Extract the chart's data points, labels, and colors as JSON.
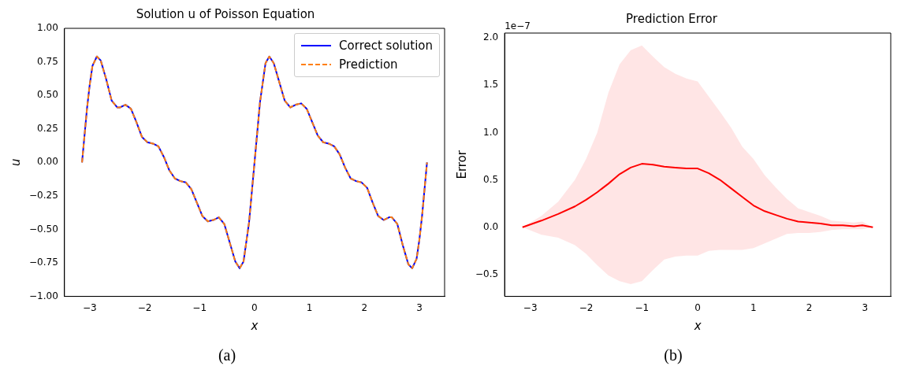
{
  "chart_data": [
    {
      "type": "line",
      "title": "Solution u of Poisson Equation",
      "xlabel": "x",
      "ylabel": "u",
      "x": [
        -3.14,
        -3.05,
        -3.0,
        -2.95,
        -2.87,
        -2.8,
        -2.7,
        -2.6,
        -2.5,
        -2.45,
        -2.35,
        -2.25,
        -2.15,
        -2.05,
        -1.95,
        -1.85,
        -1.75,
        -1.65,
        -1.55,
        -1.45,
        -1.35,
        -1.25,
        -1.15,
        -1.05,
        -0.95,
        -0.85,
        -0.75,
        -0.65,
        -0.55,
        -0.45,
        -0.35,
        -0.27,
        -0.2,
        -0.1,
        0,
        0.1,
        0.2,
        0.27,
        0.35,
        0.45,
        0.55,
        0.65,
        0.75,
        0.85,
        0.95,
        1.05,
        1.15,
        1.25,
        1.35,
        1.45,
        1.55,
        1.65,
        1.75,
        1.85,
        1.95,
        2.05,
        2.15,
        2.25,
        2.35,
        2.45,
        2.5,
        2.6,
        2.7,
        2.8,
        2.87,
        2.95,
        3.0,
        3.05,
        3.14
      ],
      "series": [
        {
          "name": "Correct solution",
          "color": "#0000ff",
          "line_style": "solid",
          "values": [
            0,
            0.4,
            0.58,
            0.72,
            0.79,
            0.76,
            0.62,
            0.46,
            0.41,
            0.41,
            0.43,
            0.4,
            0.3,
            0.19,
            0.15,
            0.14,
            0.12,
            0.04,
            -0.06,
            -0.12,
            -0.14,
            -0.15,
            -0.2,
            -0.3,
            -0.4,
            -0.44,
            -0.43,
            -0.41,
            -0.46,
            -0.6,
            -0.74,
            -0.79,
            -0.74,
            -0.45,
            0,
            0.45,
            0.74,
            0.79,
            0.74,
            0.6,
            0.46,
            0.41,
            0.43,
            0.44,
            0.4,
            0.3,
            0.2,
            0.15,
            0.14,
            0.12,
            0.06,
            -0.04,
            -0.12,
            -0.14,
            -0.15,
            -0.19,
            -0.3,
            -0.4,
            -0.43,
            -0.41,
            -0.41,
            -0.46,
            -0.62,
            -0.76,
            -0.79,
            -0.72,
            -0.58,
            -0.4,
            0
          ]
        },
        {
          "name": "Prediction",
          "color": "#ff7f0e",
          "line_style": "dashed",
          "values": [
            0,
            0.4,
            0.58,
            0.72,
            0.79,
            0.76,
            0.62,
            0.46,
            0.41,
            0.41,
            0.43,
            0.4,
            0.3,
            0.19,
            0.15,
            0.14,
            0.12,
            0.04,
            -0.06,
            -0.12,
            -0.14,
            -0.15,
            -0.2,
            -0.3,
            -0.4,
            -0.44,
            -0.43,
            -0.41,
            -0.46,
            -0.6,
            -0.74,
            -0.79,
            -0.74,
            -0.45,
            0,
            0.45,
            0.74,
            0.79,
            0.74,
            0.6,
            0.46,
            0.41,
            0.43,
            0.44,
            0.4,
            0.3,
            0.2,
            0.15,
            0.14,
            0.12,
            0.06,
            -0.04,
            -0.12,
            -0.14,
            -0.15,
            -0.19,
            -0.3,
            -0.4,
            -0.43,
            -0.41,
            -0.41,
            -0.46,
            -0.62,
            -0.76,
            -0.79,
            -0.72,
            -0.58,
            -0.4,
            0
          ]
        }
      ],
      "xlim": [
        -3.46,
        3.46
      ],
      "xticks": [
        {
          "value": -3,
          "label": "−3"
        },
        {
          "value": -2,
          "label": "−2"
        },
        {
          "value": -1,
          "label": "−1"
        },
        0,
        1,
        2,
        3
      ],
      "ylim": [
        -1,
        1
      ],
      "yticks": [
        {
          "value": -1,
          "label": "−1.00"
        },
        {
          "value": -0.75,
          "label": "−0.75"
        },
        {
          "value": -0.5,
          "label": "−0.50"
        },
        {
          "value": -0.25,
          "label": "−0.25"
        },
        {
          "value": 0,
          "label": "0.00"
        },
        {
          "value": 0.25,
          "label": "0.25"
        },
        {
          "value": 0.5,
          "label": "0.50"
        },
        {
          "value": 0.75,
          "label": "0.75"
        },
        {
          "value": 1,
          "label": "1.00"
        }
      ],
      "grid": false,
      "legend": "top right",
      "annotations": [
        "(a)"
      ]
    },
    {
      "type": "line",
      "title": "Prediction Error",
      "xlabel": "x",
      "ylabel": "Error",
      "x": [
        -3.14,
        -2.8,
        -2.5,
        -2.2,
        -2.0,
        -1.8,
        -1.6,
        -1.4,
        -1.2,
        -1.0,
        -0.8,
        -0.6,
        -0.4,
        -0.2,
        0,
        0.2,
        0.4,
        0.6,
        0.8,
        1.0,
        1.2,
        1.4,
        1.6,
        1.8,
        2.0,
        2.2,
        2.4,
        2.6,
        2.8,
        2.95,
        3.14
      ],
      "series": [
        {
          "color": "#ff0000",
          "line_style": "solid",
          "values": [
            0,
            0.07,
            0.14,
            0.22,
            0.29,
            0.37,
            0.46,
            0.56,
            0.63,
            0.67,
            0.66,
            0.64,
            0.63,
            0.62,
            0.62,
            0.57,
            0.5,
            0.41,
            0.32,
            0.23,
            0.17,
            0.13,
            0.09,
            0.06,
            0.05,
            0.04,
            0.02,
            0.02,
            0.01,
            0.02,
            0
          ],
          "upper": [
            0,
            0.12,
            0.27,
            0.5,
            0.72,
            1.0,
            1.42,
            1.72,
            1.87,
            1.92,
            1.8,
            1.69,
            1.62,
            1.57,
            1.54,
            1.38,
            1.22,
            1.05,
            0.85,
            0.72,
            0.55,
            0.42,
            0.3,
            0.2,
            0.16,
            0.12,
            0.07,
            0.06,
            0.05,
            0.06,
            0
          ],
          "lower": [
            0,
            -0.08,
            -0.11,
            -0.19,
            -0.28,
            -0.4,
            -0.51,
            -0.57,
            -0.6,
            -0.57,
            -0.45,
            -0.34,
            -0.31,
            -0.3,
            -0.3,
            -0.25,
            -0.24,
            -0.24,
            -0.24,
            -0.22,
            -0.17,
            -0.12,
            -0.07,
            -0.06,
            -0.06,
            -0.05,
            -0.03,
            -0.02,
            -0.02,
            -0.02,
            0
          ]
        }
      ],
      "xlim": [
        -3.46,
        3.46
      ],
      "xticks": [
        {
          "value": -3,
          "label": "−3"
        },
        {
          "value": -2,
          "label": "−2"
        },
        {
          "value": -1,
          "label": "−1"
        },
        0,
        1,
        2,
        3
      ],
      "ylim": [
        -0.73,
        2.05
      ],
      "yticks": [
        {
          "value": -0.5,
          "label": "−0.5"
        },
        {
          "value": 0,
          "label": "0.0"
        },
        {
          "value": 0.5,
          "label": "0.5"
        },
        {
          "value": 1,
          "label": "1.0"
        },
        {
          "value": 1.5,
          "label": "1.5"
        },
        {
          "value": 2,
          "label": "2.0"
        }
      ],
      "grid": false,
      "annotations": [
        "1e−7",
        "(b)"
      ]
    }
  ]
}
